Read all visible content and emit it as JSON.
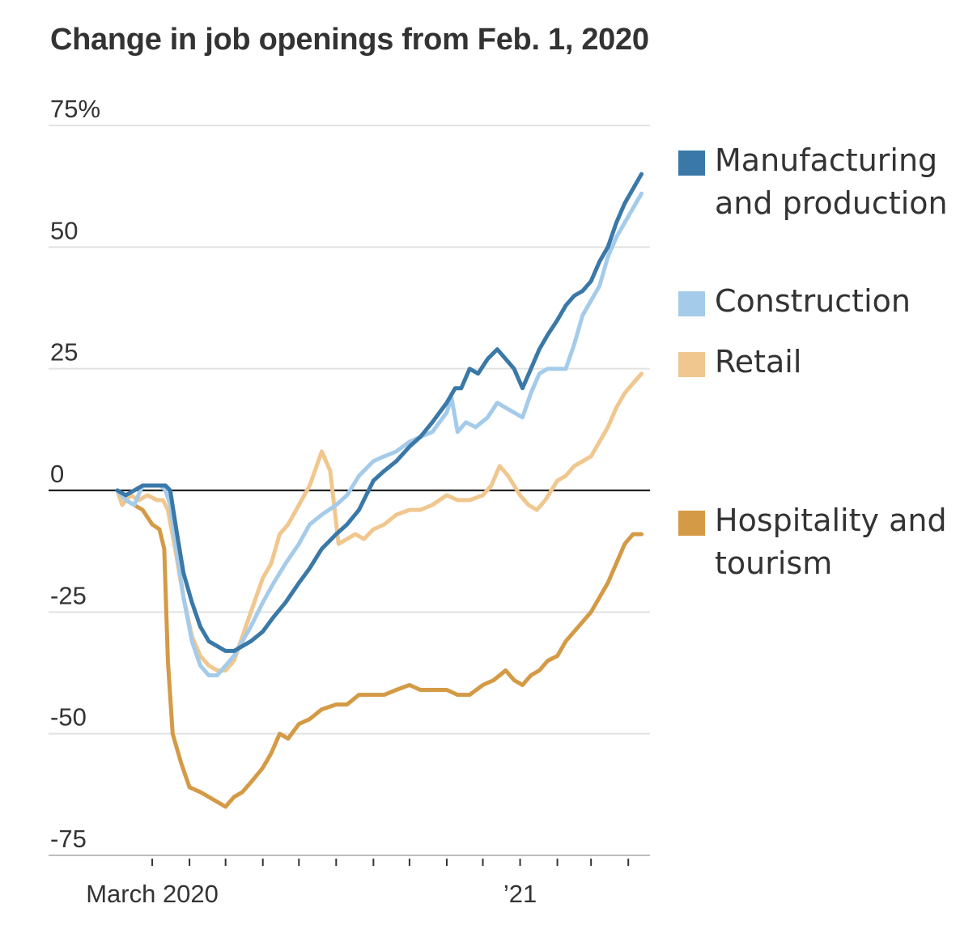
{
  "chart_data": {
    "type": "line",
    "title": "Change in job openings from Feb. 1, 2020",
    "ylim": [
      -75,
      75
    ],
    "y_ticks": [
      {
        "value": 75,
        "label": "75%"
      },
      {
        "value": 50,
        "label": "50"
      },
      {
        "value": 25,
        "label": "25"
      },
      {
        "value": 0,
        "label": "0"
      },
      {
        "value": -25,
        "label": "-25"
      },
      {
        "value": -50,
        "label": "-50"
      },
      {
        "value": -75,
        "label": "-75"
      }
    ],
    "x_axis": {
      "start": "2020-02-01",
      "end": "2021-04-15",
      "month_ticks": [
        "2020-03-01",
        "2020-04-01",
        "2020-05-01",
        "2020-06-01",
        "2020-07-01",
        "2020-08-01",
        "2020-09-01",
        "2020-10-01",
        "2020-11-01",
        "2020-12-01",
        "2021-01-01",
        "2021-02-01",
        "2021-03-01",
        "2021-04-01"
      ],
      "labels": [
        {
          "date": "2020-03-01",
          "label": "March 2020"
        },
        {
          "date": "2021-01-01",
          "label": "’21"
        }
      ]
    },
    "grid": true,
    "zero_line": true,
    "legend_position": "right",
    "series": [
      {
        "name": "Manufacturing and production",
        "color": "#3a78a8",
        "points": [
          [
            "2020-02-01",
            0
          ],
          [
            "2020-02-08",
            -1
          ],
          [
            "2020-02-15",
            0
          ],
          [
            "2020-02-22",
            1
          ],
          [
            "2020-03-01",
            1
          ],
          [
            "2020-03-08",
            1
          ],
          [
            "2020-03-12",
            1
          ],
          [
            "2020-03-16",
            0
          ],
          [
            "2020-03-21",
            -8
          ],
          [
            "2020-03-27",
            -17
          ],
          [
            "2020-04-03",
            -23
          ],
          [
            "2020-04-10",
            -28
          ],
          [
            "2020-04-17",
            -31
          ],
          [
            "2020-04-24",
            -32
          ],
          [
            "2020-05-01",
            -33
          ],
          [
            "2020-05-08",
            -33
          ],
          [
            "2020-05-15",
            -32
          ],
          [
            "2020-05-22",
            -31
          ],
          [
            "2020-06-01",
            -29
          ],
          [
            "2020-06-10",
            -26
          ],
          [
            "2020-06-20",
            -23
          ],
          [
            "2020-07-01",
            -19
          ],
          [
            "2020-07-10",
            -16
          ],
          [
            "2020-07-20",
            -12
          ],
          [
            "2020-08-01",
            -9
          ],
          [
            "2020-08-10",
            -7
          ],
          [
            "2020-08-20",
            -4
          ],
          [
            "2020-09-01",
            2
          ],
          [
            "2020-09-10",
            4
          ],
          [
            "2020-09-20",
            6
          ],
          [
            "2020-10-01",
            9
          ],
          [
            "2020-10-10",
            11
          ],
          [
            "2020-10-20",
            14
          ],
          [
            "2020-11-01",
            18
          ],
          [
            "2020-11-08",
            21
          ],
          [
            "2020-11-13",
            21
          ],
          [
            "2020-11-20",
            25
          ],
          [
            "2020-11-27",
            24
          ],
          [
            "2020-12-05",
            27
          ],
          [
            "2020-12-13",
            29
          ],
          [
            "2020-12-20",
            27
          ],
          [
            "2020-12-27",
            25
          ],
          [
            "2021-01-03",
            21
          ],
          [
            "2021-01-10",
            25
          ],
          [
            "2021-01-17",
            29
          ],
          [
            "2021-01-24",
            32
          ],
          [
            "2021-02-01",
            35
          ],
          [
            "2021-02-08",
            38
          ],
          [
            "2021-02-15",
            40
          ],
          [
            "2021-02-22",
            41
          ],
          [
            "2021-03-01",
            43
          ],
          [
            "2021-03-08",
            47
          ],
          [
            "2021-03-15",
            50
          ],
          [
            "2021-03-22",
            55
          ],
          [
            "2021-03-29",
            59
          ],
          [
            "2021-04-05",
            62
          ],
          [
            "2021-04-12",
            65
          ]
        ]
      },
      {
        "name": "Construction",
        "color": "#a5cbea",
        "points": [
          [
            "2020-02-01",
            0
          ],
          [
            "2020-02-08",
            -2
          ],
          [
            "2020-02-15",
            -3
          ],
          [
            "2020-02-22",
            1
          ],
          [
            "2020-03-01",
            1
          ],
          [
            "2020-03-08",
            1
          ],
          [
            "2020-03-12",
            0
          ],
          [
            "2020-03-16",
            -3
          ],
          [
            "2020-03-21",
            -12
          ],
          [
            "2020-03-27",
            -22
          ],
          [
            "2020-04-03",
            -31
          ],
          [
            "2020-04-10",
            -36
          ],
          [
            "2020-04-17",
            -38
          ],
          [
            "2020-04-24",
            -38
          ],
          [
            "2020-05-01",
            -36
          ],
          [
            "2020-05-08",
            -34
          ],
          [
            "2020-05-15",
            -31
          ],
          [
            "2020-05-22",
            -28
          ],
          [
            "2020-06-01",
            -23
          ],
          [
            "2020-06-10",
            -19
          ],
          [
            "2020-06-20",
            -15
          ],
          [
            "2020-07-01",
            -11
          ],
          [
            "2020-07-10",
            -7
          ],
          [
            "2020-07-20",
            -5
          ],
          [
            "2020-08-01",
            -3
          ],
          [
            "2020-08-10",
            -1
          ],
          [
            "2020-08-20",
            3
          ],
          [
            "2020-09-01",
            6
          ],
          [
            "2020-09-10",
            7
          ],
          [
            "2020-09-20",
            8
          ],
          [
            "2020-10-01",
            10
          ],
          [
            "2020-10-10",
            11
          ],
          [
            "2020-10-20",
            12
          ],
          [
            "2020-11-01",
            16
          ],
          [
            "2020-11-05",
            19
          ],
          [
            "2020-11-10",
            12
          ],
          [
            "2020-11-17",
            14
          ],
          [
            "2020-11-25",
            13
          ],
          [
            "2020-12-05",
            15
          ],
          [
            "2020-12-13",
            18
          ],
          [
            "2020-12-20",
            17
          ],
          [
            "2020-12-27",
            16
          ],
          [
            "2021-01-03",
            15
          ],
          [
            "2021-01-10",
            20
          ],
          [
            "2021-01-17",
            24
          ],
          [
            "2021-01-24",
            25
          ],
          [
            "2021-02-01",
            25
          ],
          [
            "2021-02-08",
            25
          ],
          [
            "2021-02-15",
            30
          ],
          [
            "2021-02-22",
            36
          ],
          [
            "2021-03-01",
            39
          ],
          [
            "2021-03-08",
            42
          ],
          [
            "2021-03-15",
            48
          ],
          [
            "2021-03-22",
            52
          ],
          [
            "2021-03-29",
            55
          ],
          [
            "2021-04-05",
            58
          ],
          [
            "2021-04-12",
            61
          ]
        ]
      },
      {
        "name": "Retail",
        "color": "#f0c78e",
        "points": [
          [
            "2020-02-01",
            0
          ],
          [
            "2020-02-05",
            -3
          ],
          [
            "2020-02-12",
            -1
          ],
          [
            "2020-02-19",
            -2
          ],
          [
            "2020-02-26",
            -1
          ],
          [
            "2020-03-05",
            -2
          ],
          [
            "2020-03-10",
            -2
          ],
          [
            "2020-03-14",
            -4
          ],
          [
            "2020-03-20",
            -12
          ],
          [
            "2020-03-27",
            -22
          ],
          [
            "2020-04-03",
            -30
          ],
          [
            "2020-04-10",
            -34
          ],
          [
            "2020-04-17",
            -36
          ],
          [
            "2020-04-24",
            -37
          ],
          [
            "2020-05-01",
            -37
          ],
          [
            "2020-05-08",
            -35
          ],
          [
            "2020-05-15",
            -30
          ],
          [
            "2020-05-22",
            -25
          ],
          [
            "2020-06-01",
            -18
          ],
          [
            "2020-06-08",
            -15
          ],
          [
            "2020-06-15",
            -9
          ],
          [
            "2020-06-22",
            -7
          ],
          [
            "2020-07-01",
            -3
          ],
          [
            "2020-07-10",
            1
          ],
          [
            "2020-07-20",
            8
          ],
          [
            "2020-07-27",
            4
          ],
          [
            "2020-08-03",
            -11
          ],
          [
            "2020-08-10",
            -10
          ],
          [
            "2020-08-17",
            -9
          ],
          [
            "2020-08-24",
            -10
          ],
          [
            "2020-09-01",
            -8
          ],
          [
            "2020-09-10",
            -7
          ],
          [
            "2020-09-20",
            -5
          ],
          [
            "2020-10-01",
            -4
          ],
          [
            "2020-10-10",
            -4
          ],
          [
            "2020-10-20",
            -3
          ],
          [
            "2020-11-01",
            -1
          ],
          [
            "2020-11-10",
            -2
          ],
          [
            "2020-11-20",
            -2
          ],
          [
            "2020-12-01",
            -1
          ],
          [
            "2020-12-08",
            1
          ],
          [
            "2020-12-15",
            5
          ],
          [
            "2020-12-22",
            3
          ],
          [
            "2021-01-01",
            -1
          ],
          [
            "2021-01-08",
            -3
          ],
          [
            "2021-01-15",
            -4
          ],
          [
            "2021-01-22",
            -2
          ],
          [
            "2021-02-01",
            2
          ],
          [
            "2021-02-08",
            3
          ],
          [
            "2021-02-15",
            5
          ],
          [
            "2021-02-22",
            6
          ],
          [
            "2021-03-01",
            7
          ],
          [
            "2021-03-08",
            10
          ],
          [
            "2021-03-15",
            13
          ],
          [
            "2021-03-22",
            17
          ],
          [
            "2021-03-29",
            20
          ],
          [
            "2021-04-05",
            22
          ],
          [
            "2021-04-12",
            24
          ]
        ]
      },
      {
        "name": "Hospitality and tourism",
        "color": "#d49a45",
        "points": [
          [
            "2020-02-01",
            0
          ],
          [
            "2020-02-08",
            -2
          ],
          [
            "2020-02-15",
            -3
          ],
          [
            "2020-02-22",
            -4
          ],
          [
            "2020-03-01",
            -7
          ],
          [
            "2020-03-07",
            -8
          ],
          [
            "2020-03-11",
            -12
          ],
          [
            "2020-03-14",
            -35
          ],
          [
            "2020-03-18",
            -50
          ],
          [
            "2020-03-25",
            -56
          ],
          [
            "2020-04-01",
            -61
          ],
          [
            "2020-04-10",
            -62
          ],
          [
            "2020-04-17",
            -63
          ],
          [
            "2020-04-24",
            -64
          ],
          [
            "2020-05-01",
            -65
          ],
          [
            "2020-05-08",
            -63
          ],
          [
            "2020-05-15",
            -62
          ],
          [
            "2020-05-22",
            -60
          ],
          [
            "2020-06-01",
            -57
          ],
          [
            "2020-06-08",
            -54
          ],
          [
            "2020-06-15",
            -50
          ],
          [
            "2020-06-22",
            -51
          ],
          [
            "2020-07-01",
            -48
          ],
          [
            "2020-07-10",
            -47
          ],
          [
            "2020-07-20",
            -45
          ],
          [
            "2020-08-01",
            -44
          ],
          [
            "2020-08-10",
            -44
          ],
          [
            "2020-08-20",
            -42
          ],
          [
            "2020-09-01",
            -42
          ],
          [
            "2020-09-10",
            -42
          ],
          [
            "2020-09-20",
            -41
          ],
          [
            "2020-10-01",
            -40
          ],
          [
            "2020-10-10",
            -41
          ],
          [
            "2020-10-20",
            -41
          ],
          [
            "2020-11-01",
            -41
          ],
          [
            "2020-11-10",
            -42
          ],
          [
            "2020-11-20",
            -42
          ],
          [
            "2020-12-01",
            -40
          ],
          [
            "2020-12-10",
            -39
          ],
          [
            "2020-12-20",
            -37
          ],
          [
            "2020-12-27",
            -39
          ],
          [
            "2021-01-03",
            -40
          ],
          [
            "2021-01-10",
            -38
          ],
          [
            "2021-01-17",
            -37
          ],
          [
            "2021-01-24",
            -35
          ],
          [
            "2021-02-01",
            -34
          ],
          [
            "2021-02-08",
            -31
          ],
          [
            "2021-02-15",
            -29
          ],
          [
            "2021-02-22",
            -27
          ],
          [
            "2021-03-01",
            -25
          ],
          [
            "2021-03-08",
            -22
          ],
          [
            "2021-03-15",
            -19
          ],
          [
            "2021-03-22",
            -15
          ],
          [
            "2021-03-29",
            -11
          ],
          [
            "2021-04-05",
            -9
          ],
          [
            "2021-04-12",
            -9
          ]
        ]
      }
    ]
  }
}
